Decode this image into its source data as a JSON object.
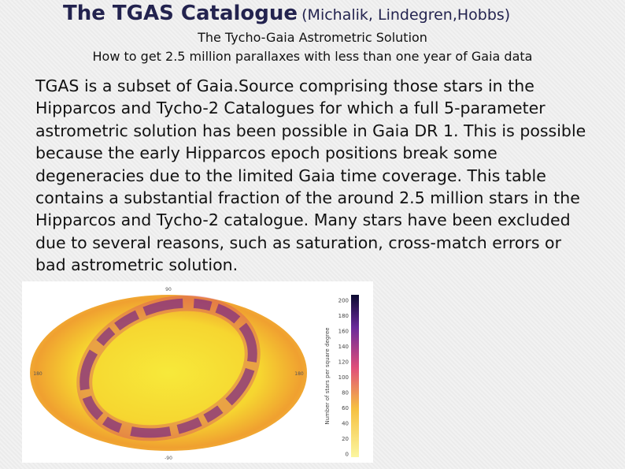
{
  "header": {
    "title": "The TGAS Catalogue",
    "authors": "(Michalik, Lindegren,Hobbs)",
    "subtitle": "The Tycho-Gaia Astrometric Solution",
    "tagline": "How to get 2.5 million parallaxes with less than one year of Gaia data"
  },
  "body": {
    "lines": [
      "TGAS is a subset of Gaia.Source comprising those stars in the",
      "Hipparcos and Tycho-2 Catalogues for which a full 5-parameter",
      "astrometric solution has been possible in Gaia DR 1. This is possible",
      "because the early Hipparcos epoch positions break some",
      "degeneracies due to the limited Gaia time coverage. This table",
      "contains a substantial fraction of the around 2.5 million stars in the",
      "Hipparcos and Tycho-2 catalogue. Many stars have been excluded",
      "due to several reasons, such as saturation, cross-match errors or",
      "bad astrometric solution."
    ]
  },
  "figure": {
    "map_labels": {
      "top": "90",
      "bottom": "-90",
      "left": "180",
      "right": "180"
    },
    "colorbar": {
      "label": "Number of stars per square degree",
      "ticks": [
        0,
        20,
        40,
        60,
        80,
        100,
        120,
        140,
        160,
        180,
        200
      ]
    }
  }
}
